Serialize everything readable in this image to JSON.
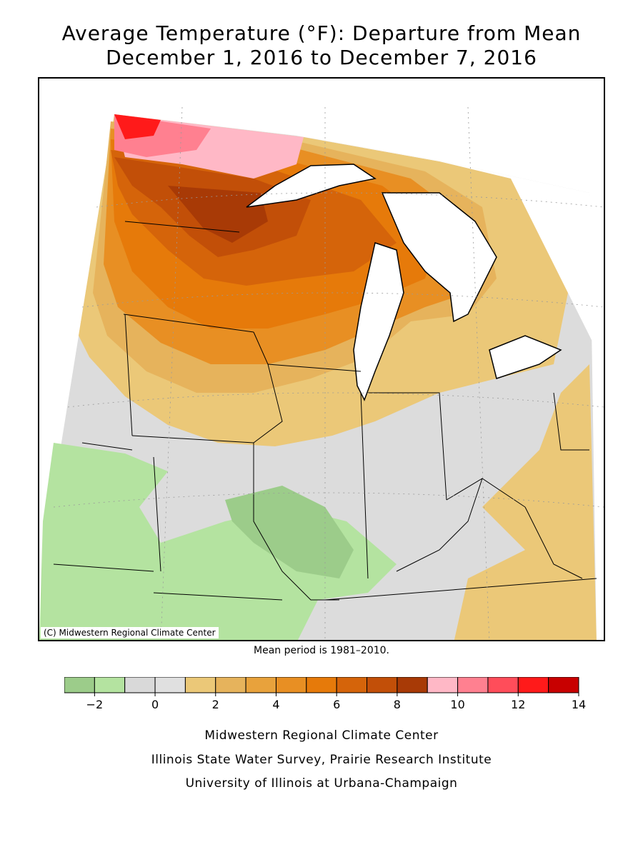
{
  "title": "Average Temperature (°F): Departure from Mean",
  "subtitle": "December 1, 2016 to December 7, 2016",
  "credit": "(C) Midwestern Regional Climate Center",
  "mean_period": "Mean period is 1981–2010.",
  "legend": {
    "bins": [
      {
        "color": "#9ccc8a"
      },
      {
        "color": "#b4e3a0"
      },
      {
        "color": "#d9d9d9"
      },
      {
        "color": "#e0e0e0"
      },
      {
        "color": "#ebc878"
      },
      {
        "color": "#e6b35c"
      },
      {
        "color": "#e8a23c"
      },
      {
        "color": "#e88f23"
      },
      {
        "color": "#e67a0a"
      },
      {
        "color": "#d5640a"
      },
      {
        "color": "#c24f08"
      },
      {
        "color": "#a83a06"
      },
      {
        "color": "#ffb8c6"
      },
      {
        "color": "#ff8090"
      },
      {
        "color": "#ff4d5a"
      },
      {
        "color": "#ff1a1a"
      },
      {
        "color": "#c80000"
      }
    ],
    "ticks": [
      {
        "label": "−2",
        "value": -2
      },
      {
        "label": "0",
        "value": 0
      },
      {
        "label": "2",
        "value": 2
      },
      {
        "label": "4",
        "value": 4
      },
      {
        "label": "6",
        "value": 6
      },
      {
        "label": "8",
        "value": 8
      },
      {
        "label": "10",
        "value": 10
      },
      {
        "label": "12",
        "value": 12
      },
      {
        "label": "14",
        "value": 14
      }
    ],
    "min": -3,
    "max": 14
  },
  "footer": {
    "line1": "Midwestern Regional Climate Center",
    "line2": "Illinois State Water Survey, Prairie Research Institute",
    "line3": "University of Illinois at Urbana-Champaign"
  }
}
